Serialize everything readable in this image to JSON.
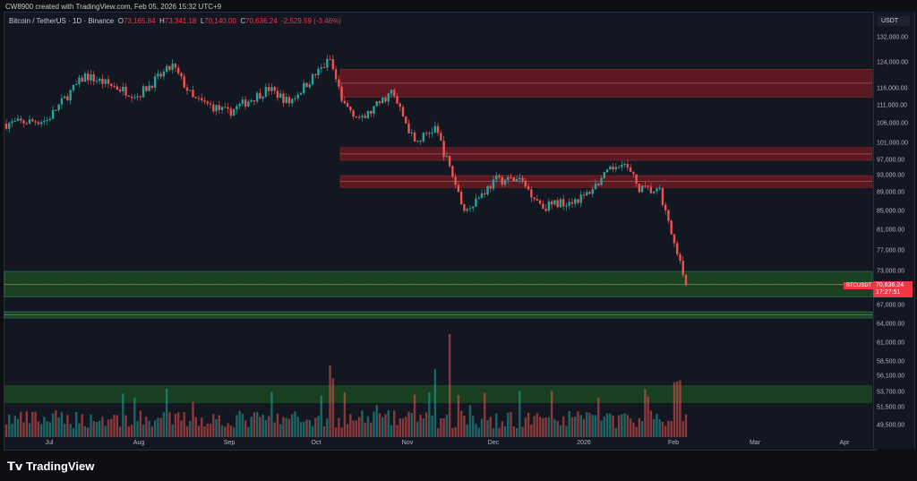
{
  "watermark": "CW8900 created with TradingView.com, Feb 05, 2026 15:32 UTC+9",
  "legend": {
    "symbol": "Bitcoin / TetherUS · 1D · Binance",
    "o_label": "O",
    "o": "73,165.84",
    "h_label": "H",
    "h": "73,341.18",
    "l_label": "L",
    "l": "70,140.00",
    "c_label": "C",
    "c": "70,636.24",
    "change": "-2,529.59 (-3.46%)"
  },
  "axis": {
    "currency": "USDT",
    "ticks": [
      "132,000.00",
      "124,000.00",
      "116,000.00",
      "111,000.00",
      "106,000.00",
      "101,000.00",
      "97,000.00",
      "93,000.00",
      "89,000.00",
      "85,000.00",
      "81,000.00",
      "77,000.00",
      "73,000.00",
      "67,000.00",
      "64,000.00",
      "61,000.00",
      "58,500.00",
      "56,100.00",
      "53,700.00",
      "51,500.00",
      "49,500.00"
    ]
  },
  "current": {
    "symbol": "BTCUSDT",
    "price": "70,636.24",
    "countdown": "17:27:51"
  },
  "months": [
    "Jul",
    "Aug",
    "Sep",
    "Oct",
    "Nov",
    "Dec",
    "2026",
    "Feb",
    "Mar",
    "Apr"
  ],
  "colors": {
    "up": "#26a69a",
    "down": "#ef5350",
    "supply": "#6b1a22",
    "demand": "#1c4a22"
  },
  "zones": {
    "supply": [
      [
        113500,
        122000
      ],
      [
        97000,
        100000
      ],
      [
        90200,
        93000
      ]
    ],
    "demand": [
      [
        68500,
        73000
      ],
      [
        65000,
        66000
      ]
    ]
  },
  "price_keypoints": [
    [
      0,
      106000
    ],
    [
      14,
      107000
    ],
    [
      23,
      116000
    ],
    [
      27,
      120000
    ],
    [
      45,
      114000
    ],
    [
      57,
      123000
    ],
    [
      64,
      113000
    ],
    [
      76,
      109000
    ],
    [
      90,
      116000
    ],
    [
      97,
      112000
    ],
    [
      111,
      125000
    ],
    [
      115,
      112000
    ],
    [
      122,
      107000
    ],
    [
      132,
      115000
    ],
    [
      140,
      101000
    ],
    [
      147,
      105000
    ],
    [
      157,
      85000
    ],
    [
      168,
      92000
    ],
    [
      176,
      92000
    ],
    [
      184,
      86000
    ],
    [
      198,
      88000
    ],
    [
      211,
      97000
    ],
    [
      217,
      90000
    ],
    [
      224,
      89000
    ],
    [
      229,
      78000
    ],
    [
      233,
      70636
    ]
  ],
  "brand": "TradingView"
}
